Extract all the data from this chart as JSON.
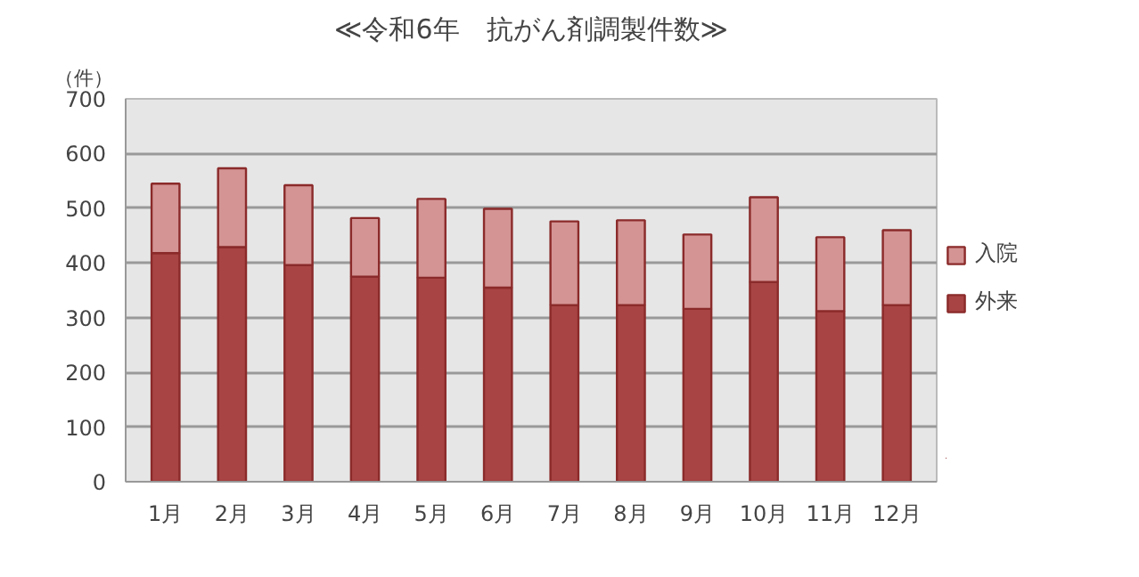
{
  "chart_data": {
    "type": "bar",
    "title": "≪令和6年　抗がん剤調製件数≫",
    "ylabel": "（件）",
    "categories": [
      "1月",
      "2月",
      "3月",
      "4月",
      "5月",
      "6月",
      "7月",
      "8月",
      "9月",
      "10月",
      "11月",
      "12月"
    ],
    "stacked": true,
    "ylim": [
      0,
      700
    ],
    "yticks": [
      0,
      100,
      200,
      300,
      400,
      500,
      600,
      700
    ],
    "grid": "y",
    "legend": "right",
    "series": [
      {
        "name": "外来",
        "color": "#a84444",
        "values": [
          418,
          429,
          396,
          375,
          373,
          355,
          323,
          323,
          316,
          365,
          312,
          323
        ]
      },
      {
        "name": "入院",
        "color": "#d49494",
        "values": [
          127,
          144,
          146,
          107,
          144,
          144,
          153,
          155,
          136,
          155,
          135,
          137
        ]
      }
    ]
  }
}
